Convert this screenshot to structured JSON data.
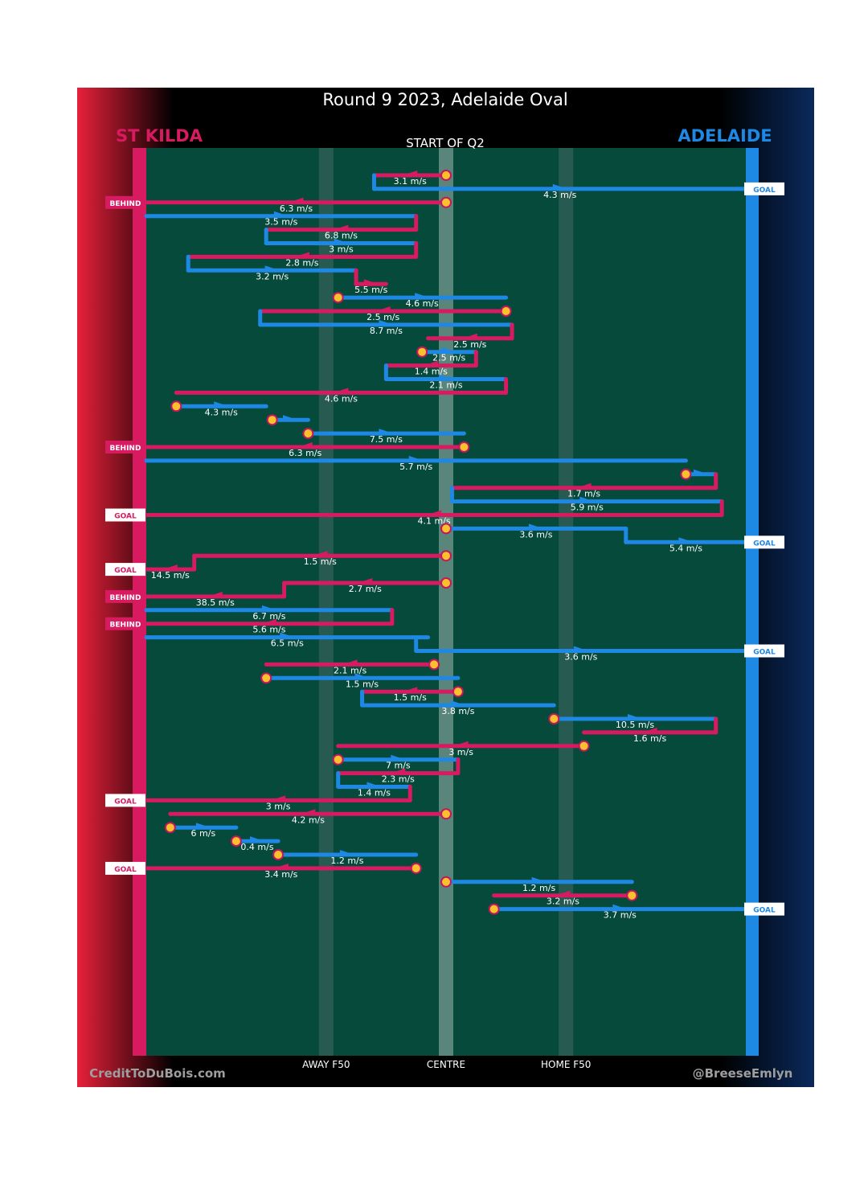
{
  "title": "Round 9 2023, Adelaide Oval",
  "subtitle": "START OF Q2",
  "teams": {
    "left": {
      "name": "ST KILDA",
      "color": "#d81b60"
    },
    "right": {
      "name": "ADELAIDE",
      "color": "#1e88e5"
    }
  },
  "colors": {
    "field": "#054a3b",
    "marker": "#fbc02d",
    "marker_ring": "#c2185b"
  },
  "axis_labels": [
    "AWAY F50",
    "CENTRE",
    "HOME F50"
  ],
  "credits": {
    "left": "CreditToDuBois.com",
    "right": "@BreeseEmlyn"
  },
  "chart_data": {
    "type": "line",
    "description": "Ball movement chains; x = field position 0 (St Kilda goal) to 100 (Adelaide goal), rows are sequential ball movements",
    "x_axis": {
      "min": 0,
      "max": 100,
      "ticks": [
        {
          "label": "AWAY F50",
          "value": 30
        },
        {
          "label": "CENTRE",
          "value": 50
        },
        {
          "label": "HOME F50",
          "value": 70
        }
      ]
    },
    "segments": [
      {
        "team": "STK",
        "from": 50,
        "to": 38,
        "speed": "3.1 m/s",
        "start_marker": true
      },
      {
        "team": "ADL",
        "from": 38,
        "to": 100,
        "speed": "4.3 m/s",
        "result": "GOAL"
      },
      {
        "team": "STK",
        "from": 50,
        "to": 0,
        "speed": "6.3 m/s",
        "result": "BEHIND",
        "start_marker": true
      },
      {
        "team": "ADL",
        "from": 0,
        "to": 45,
        "speed": "3.5 m/s"
      },
      {
        "team": "STK",
        "from": 45,
        "to": 20,
        "speed": "6.8 m/s"
      },
      {
        "team": "ADL",
        "from": 20,
        "to": 45,
        "speed": "3 m/s"
      },
      {
        "team": "STK",
        "from": 45,
        "to": 7,
        "speed": "2.8 m/s"
      },
      {
        "team": "ADL",
        "from": 7,
        "to": 35,
        "speed": "3.2 m/s"
      },
      {
        "team": "STK",
        "from": 35,
        "to": 40,
        "speed": "5.5 m/s"
      },
      {
        "team": "ADL",
        "from": 32,
        "to": 60,
        "speed": "4.6 m/s",
        "start_marker": true
      },
      {
        "team": "STK",
        "from": 60,
        "to": 19,
        "speed": "2.5 m/s",
        "start_marker": true
      },
      {
        "team": "ADL",
        "from": 19,
        "to": 61,
        "speed": "8.7 m/s"
      },
      {
        "team": "STK",
        "from": 61,
        "to": 47,
        "speed": "2.5 m/s"
      },
      {
        "team": "ADL",
        "from": 46,
        "to": 55,
        "speed": "2.5 m/s",
        "start_marker": true
      },
      {
        "team": "STK",
        "from": 55,
        "to": 40,
        "speed": "1.4 m/s"
      },
      {
        "team": "ADL",
        "from": 40,
        "to": 60,
        "speed": "2.1 m/s"
      },
      {
        "team": "STK",
        "from": 60,
        "to": 5,
        "speed": "4.6 m/s"
      },
      {
        "team": "ADL",
        "from": 5,
        "to": 20,
        "speed": "4.3 m/s",
        "start_marker": true
      },
      {
        "team": "ADL",
        "from": 21,
        "to": 27,
        "speed": "",
        "start_marker": true
      },
      {
        "team": "ADL",
        "from": 27,
        "to": 53,
        "speed": "7.5 m/s",
        "start_marker": true
      },
      {
        "team": "STK",
        "from": 53,
        "to": 0,
        "speed": "6.3 m/s",
        "result": "BEHIND",
        "start_marker": true
      },
      {
        "team": "ADL",
        "from": 0,
        "to": 90,
        "speed": "5.7 m/s"
      },
      {
        "team": "ADL",
        "from": 90,
        "to": 95,
        "speed": "",
        "start_marker": true
      },
      {
        "team": "STK",
        "from": 95,
        "to": 51,
        "speed": "1.7 m/s"
      },
      {
        "team": "ADL",
        "from": 51,
        "to": 96,
        "speed": "5.9 m/s"
      },
      {
        "team": "STK",
        "from": 96,
        "to": 0,
        "speed": "4.1 m/s",
        "result": "GOAL"
      },
      {
        "team": "ADL",
        "from": 50,
        "to": 80,
        "speed": "3.6 m/s",
        "start_marker": true
      },
      {
        "team": "ADL",
        "from": 80,
        "to": 100,
        "speed": "5.4 m/s",
        "result": "GOAL"
      },
      {
        "team": "STK",
        "from": 50,
        "to": 8,
        "speed": "1.5 m/s",
        "start_marker": true
      },
      {
        "team": "STK",
        "from": 8,
        "to": 0,
        "speed": "14.5 m/s",
        "result": "GOAL"
      },
      {
        "team": "STK",
        "from": 50,
        "to": 23,
        "speed": "2.7 m/s",
        "start_marker": true
      },
      {
        "team": "STK",
        "from": 23,
        "to": 0,
        "speed": "38.5 m/s",
        "result": "BEHIND"
      },
      {
        "team": "ADL",
        "from": 0,
        "to": 41,
        "speed": "6.7 m/s"
      },
      {
        "team": "STK",
        "from": 41,
        "to": 0,
        "speed": "5.6 m/s",
        "result": "BEHIND"
      },
      {
        "team": "ADL",
        "from": 0,
        "to": 47,
        "speed": "6.5 m/s"
      },
      {
        "team": "ADL",
        "from": 45,
        "to": 100,
        "speed": "3.6 m/s",
        "result": "GOAL"
      },
      {
        "team": "STK",
        "from": 48,
        "to": 20,
        "speed": "2.1 m/s",
        "start_marker": true
      },
      {
        "team": "ADL",
        "from": 20,
        "to": 52,
        "speed": "1.5 m/s",
        "start_marker": true
      },
      {
        "team": "STK",
        "from": 52,
        "to": 36,
        "speed": "1.5 m/s",
        "start_marker": true
      },
      {
        "team": "ADL",
        "from": 36,
        "to": 68,
        "speed": "3.8 m/s"
      },
      {
        "team": "ADL",
        "from": 68,
        "to": 95,
        "speed": "10.5 m/s",
        "start_marker": true
      },
      {
        "team": "STK",
        "from": 95,
        "to": 73,
        "speed": "1.6 m/s"
      },
      {
        "team": "STK",
        "from": 73,
        "to": 32,
        "speed": "3 m/s",
        "start_marker": true
      },
      {
        "team": "ADL",
        "from": 32,
        "to": 52,
        "speed": "7 m/s",
        "start_marker": true
      },
      {
        "team": "STK",
        "from": 52,
        "to": 32,
        "speed": "2.3 m/s"
      },
      {
        "team": "ADL",
        "from": 32,
        "to": 44,
        "speed": "1.4 m/s"
      },
      {
        "team": "STK",
        "from": 44,
        "to": 0,
        "speed": "3 m/s",
        "result": "GOAL"
      },
      {
        "team": "STK",
        "from": 50,
        "to": 4,
        "speed": "4.2 m/s",
        "start_marker": true
      },
      {
        "team": "ADL",
        "from": 4,
        "to": 15,
        "speed": "6 m/s",
        "start_marker": true
      },
      {
        "team": "ADL",
        "from": 15,
        "to": 22,
        "speed": "0.4 m/s",
        "start_marker": true
      },
      {
        "team": "ADL",
        "from": 22,
        "to": 45,
        "speed": "1.2 m/s",
        "start_marker": true
      },
      {
        "team": "STK",
        "from": 45,
        "to": 0,
        "speed": "3.4 m/s",
        "result": "GOAL",
        "start_marker": true
      },
      {
        "team": "ADL",
        "from": 50,
        "to": 81,
        "speed": "1.2 m/s",
        "start_marker": true
      },
      {
        "team": "STK",
        "from": 81,
        "to": 58,
        "speed": "3.2 m/s",
        "start_marker": true
      },
      {
        "team": "ADL",
        "from": 58,
        "to": 100,
        "speed": "3.7 m/s",
        "result": "GOAL",
        "start_marker": true
      }
    ]
  }
}
